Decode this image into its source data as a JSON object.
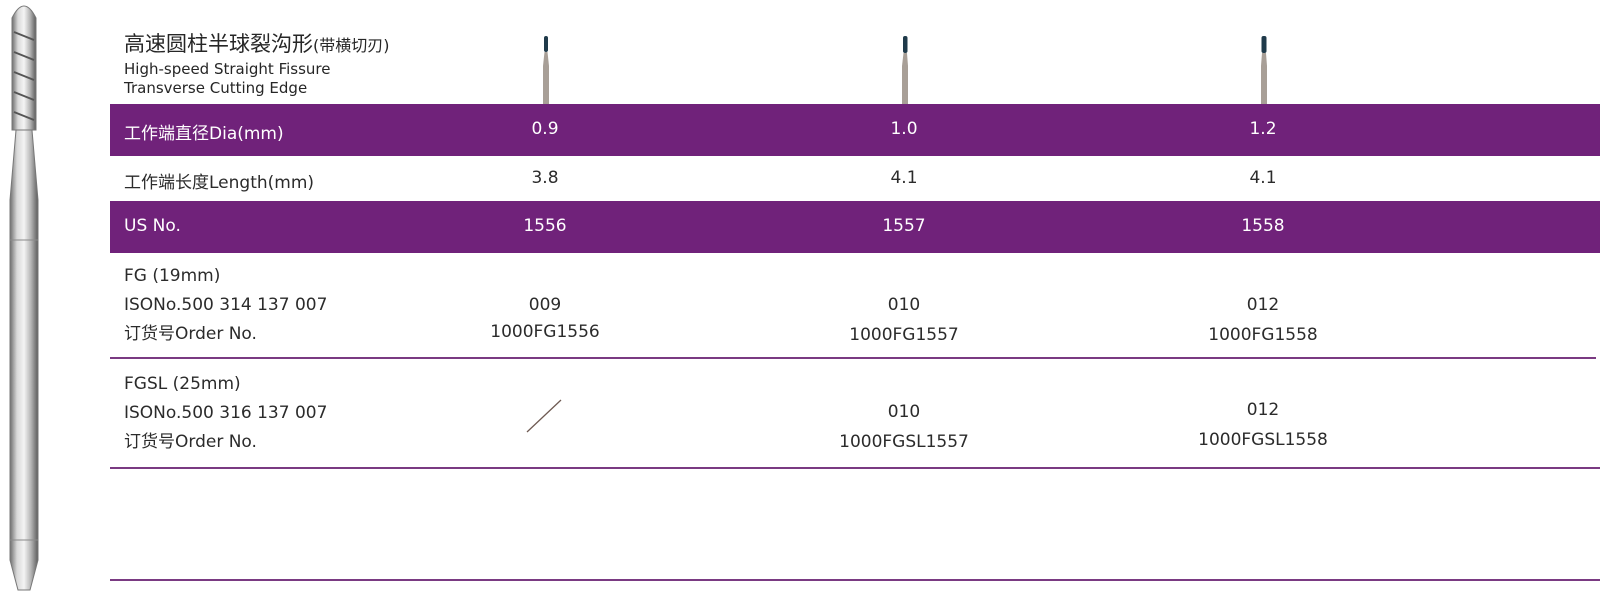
{
  "title": {
    "zh": "高速圆柱半球裂沟形",
    "zh_suffix": "(带横切刃)",
    "en_line1": "High-speed Straight Fissure",
    "en_line2": "Transverse Cutting Edge"
  },
  "rows": {
    "dia": {
      "label": "工作端直径Dia(mm)",
      "values": [
        "0.9",
        "1.0",
        "1.2"
      ]
    },
    "length": {
      "label": "工作端长度Length(mm)",
      "values": [
        "3.8",
        "4.1",
        "4.1"
      ]
    },
    "us": {
      "label": "US No.",
      "values": [
        "1556",
        "1557",
        "1558"
      ]
    }
  },
  "fg": {
    "label_line1": "FG (19mm)",
    "label_line2": "ISONo.500 314 137 007",
    "label_line3": "订货号Order No.",
    "iso": [
      "009",
      "010",
      "012"
    ],
    "order": [
      "1000FG1556",
      "1000FG1557",
      "1000FG1558"
    ]
  },
  "fgsl": {
    "label_line1": "FGSL (25mm)",
    "label_line2": "ISONo.500 316 137 007",
    "label_line3": "订货号Order No.",
    "iso": [
      "010",
      "012"
    ],
    "order": [
      "1000FGSL1557",
      "1000FGSL1558"
    ]
  },
  "colors": {
    "band": "#70227a",
    "rule": "#7a3a82",
    "bur_head": "#1f3a4a",
    "bur_shank": "#a89f97"
  }
}
